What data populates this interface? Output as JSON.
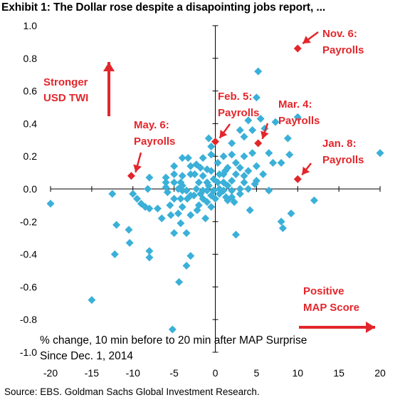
{
  "title": "Exhibit 1: The Dollar rose despite a disapointing jobs report, ...",
  "source": "Source: EBS. Goldman Sachs Global Investment Research.",
  "colors": {
    "points": "#3bb0d8",
    "highlight": "#e3262b",
    "axis": "#000000"
  },
  "chart_data": {
    "type": "scatter",
    "title": "Exhibit 1: The Dollar rose despite a disapointing jobs report, ...",
    "xlim": [
      -20,
      20
    ],
    "ylim": [
      -1.0,
      1.0
    ],
    "xticks": [
      "-20",
      "-15",
      "-10",
      "-5",
      "0",
      "5",
      "10",
      "15",
      "20"
    ],
    "yticks": [
      "1.0",
      "0.8",
      "0.6",
      "0.4",
      "0.2",
      "0.0",
      "-0.2",
      "-0.4",
      "-0.6",
      "-0.8",
      "-1.0"
    ],
    "grid": false,
    "annotations": {
      "arrow_up_label": [
        "Stronger",
        "USD TWI"
      ],
      "arrow_right_label": [
        "Positive",
        "MAP Score"
      ],
      "note_line1": "% change, 10 min before to 20 min after MAP Surprise",
      "note_line2": "Since Dec. 1, 2014"
    },
    "highlighted": [
      {
        "label1": "Nov. 6:",
        "label2": "Payrolls",
        "x": 10.0,
        "y": 0.86
      },
      {
        "label1": "Feb. 5:",
        "label2": "Payrolls",
        "x": 0.0,
        "y": 0.29
      },
      {
        "label1": "Mar. 4:",
        "label2": "Payrolls",
        "x": 5.2,
        "y": 0.28
      },
      {
        "label1": "May. 6:",
        "label2": "Payrolls",
        "x": -10.2,
        "y": 0.08
      },
      {
        "label1": "Jan. 8:",
        "label2": "Payrolls",
        "x": 10.0,
        "y": 0.06
      }
    ],
    "points": [
      [
        -20,
        -0.09
      ],
      [
        -15,
        -0.68
      ],
      [
        -12.5,
        -0.03
      ],
      [
        -12,
        -0.22
      ],
      [
        -12.2,
        -0.4
      ],
      [
        -10.5,
        -0.25
      ],
      [
        -10.4,
        -0.33
      ],
      [
        -10,
        -0.03
      ],
      [
        -9.5,
        -0.06
      ],
      [
        -9,
        -0.09
      ],
      [
        -8,
        -0.38
      ],
      [
        -8,
        -0.42
      ],
      [
        -8.5,
        -0.11
      ],
      [
        -8,
        -0.12
      ],
      [
        -8,
        0.07
      ],
      [
        -8.2,
        0.0
      ],
      [
        -7,
        -0.12
      ],
      [
        -6.5,
        -0.18
      ],
      [
        -6,
        0.01
      ],
      [
        -6,
        0.04
      ],
      [
        -6,
        0.07
      ],
      [
        -5.8,
        -0.02
      ],
      [
        -5.5,
        -0.1
      ],
      [
        -5.4,
        -0.16
      ],
      [
        -5,
        -0.27
      ],
      [
        -5,
        0.04
      ],
      [
        -5,
        -0.06
      ],
      [
        -5,
        0.14
      ],
      [
        -5,
        0.09
      ],
      [
        -5.2,
        -0.86
      ],
      [
        -4.4,
        -0.57
      ],
      [
        -4.5,
        -0.15
      ],
      [
        -4.2,
        -0.21
      ],
      [
        -4.5,
        0.0
      ],
      [
        -4.2,
        0.04
      ],
      [
        -4.2,
        -0.06
      ],
      [
        -4,
        0.19
      ],
      [
        -4,
        0.08
      ],
      [
        -4,
        0.02
      ],
      [
        -4,
        -0.01
      ],
      [
        -4,
        -0.11
      ],
      [
        -3.5,
        -0.27
      ],
      [
        -3.4,
        -0.06
      ],
      [
        -3.5,
        -0.01
      ],
      [
        -3.3,
        0.19
      ],
      [
        -3,
        0.14
      ],
      [
        -3,
        0.09
      ],
      [
        -3,
        -0.04
      ],
      [
        -3,
        -0.16
      ],
      [
        -3.5,
        -0.47
      ],
      [
        -3,
        -0.41
      ],
      [
        -2.6,
        -0.04
      ],
      [
        -2.5,
        0.09
      ],
      [
        -2.3,
        0.0
      ],
      [
        -2.2,
        -0.13
      ],
      [
        -2,
        -0.1
      ],
      [
        -2,
        0.04
      ],
      [
        -2.3,
        0.15
      ],
      [
        -1.8,
        0.13
      ],
      [
        -1.8,
        -0.03
      ],
      [
        -1.5,
        0.08
      ],
      [
        -1.5,
        -0.01
      ],
      [
        -1.5,
        -0.06
      ],
      [
        -1.5,
        0.19
      ],
      [
        -1,
        0.12
      ],
      [
        -1,
        -0.08
      ],
      [
        -1,
        0.04
      ],
      [
        -1,
        -0.01
      ],
      [
        -1.2,
        -0.18
      ],
      [
        -0.5,
        0.11
      ],
      [
        -0.5,
        -0.04
      ],
      [
        -0.8,
        0.02
      ],
      [
        -0.5,
        0.21
      ],
      [
        -0.5,
        -0.11
      ],
      [
        -0.2,
        0.06
      ],
      [
        -0.2,
        -0.01
      ],
      [
        -0.8,
        0.31
      ],
      [
        -0.5,
        0.26
      ],
      [
        0,
        -0.06
      ],
      [
        0.3,
        0.16
      ],
      [
        0.3,
        0.04
      ],
      [
        0.5,
        0.09
      ],
      [
        0.5,
        -0.03
      ],
      [
        0.5,
        0.0
      ],
      [
        1,
        0.2
      ],
      [
        1,
        0.09
      ],
      [
        1,
        -0.01
      ],
      [
        1,
        0.04
      ],
      [
        1.2,
        0.11
      ],
      [
        1.3,
        -0.05
      ],
      [
        1.5,
        0.13
      ],
      [
        1.5,
        0.02
      ],
      [
        1.5,
        -0.07
      ],
      [
        2,
        0.28
      ],
      [
        2,
        0.21
      ],
      [
        2,
        0.05
      ],
      [
        2,
        -0.01
      ],
      [
        2,
        -0.05
      ],
      [
        2.3,
        -0.08
      ],
      [
        2.5,
        -0.28
      ],
      [
        2.5,
        0.09
      ],
      [
        2.5,
        0.16
      ],
      [
        3,
        0.0
      ],
      [
        3,
        0.13
      ],
      [
        3,
        0.36
      ],
      [
        3,
        -0.03
      ],
      [
        3.5,
        0.04
      ],
      [
        3.5,
        0.2
      ],
      [
        3.5,
        0.32
      ],
      [
        3.5,
        0.08
      ],
      [
        4,
        0.42
      ],
      [
        4,
        0.11
      ],
      [
        4,
        0.0
      ],
      [
        4.2,
        -0.13
      ],
      [
        4.5,
        0.22
      ],
      [
        4.5,
        0.36
      ],
      [
        4.8,
        0.03
      ],
      [
        5,
        0.05
      ],
      [
        5,
        0.14
      ],
      [
        5,
        0.56
      ],
      [
        5.2,
        0.72
      ],
      [
        5.5,
        0.43
      ],
      [
        5.8,
        0.09
      ],
      [
        6,
        0.37
      ],
      [
        6.5,
        0.22
      ],
      [
        6.5,
        -0.01
      ],
      [
        7,
        0.16
      ],
      [
        7.3,
        0.41
      ],
      [
        8,
        0.16
      ],
      [
        8,
        -0.2
      ],
      [
        8.2,
        -0.24
      ],
      [
        8.8,
        0.31
      ],
      [
        9,
        0.21
      ],
      [
        9.2,
        -0.15
      ],
      [
        10,
        0.44
      ],
      [
        12,
        -0.07
      ],
      [
        20,
        0.22
      ]
    ]
  }
}
